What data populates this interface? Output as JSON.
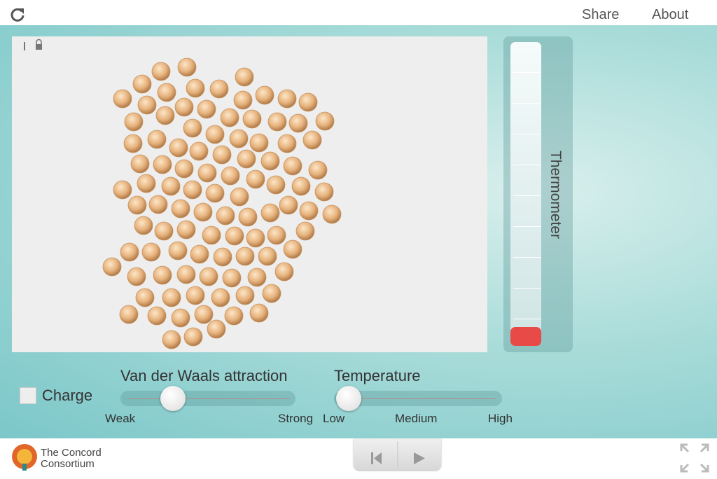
{
  "header": {
    "share": "Share",
    "about": "About"
  },
  "thermometer": {
    "label": "Thermometer"
  },
  "controls": {
    "charge": "Charge",
    "vdw": {
      "title": "Van der Waals attraction",
      "min": "Weak",
      "max": "Strong"
    },
    "temperature": {
      "title": "Temperature",
      "low": "Low",
      "medium": "Medium",
      "high": "High"
    }
  },
  "footer": {
    "logo_line1": "The Concord",
    "logo_line2": "Consortium"
  }
}
